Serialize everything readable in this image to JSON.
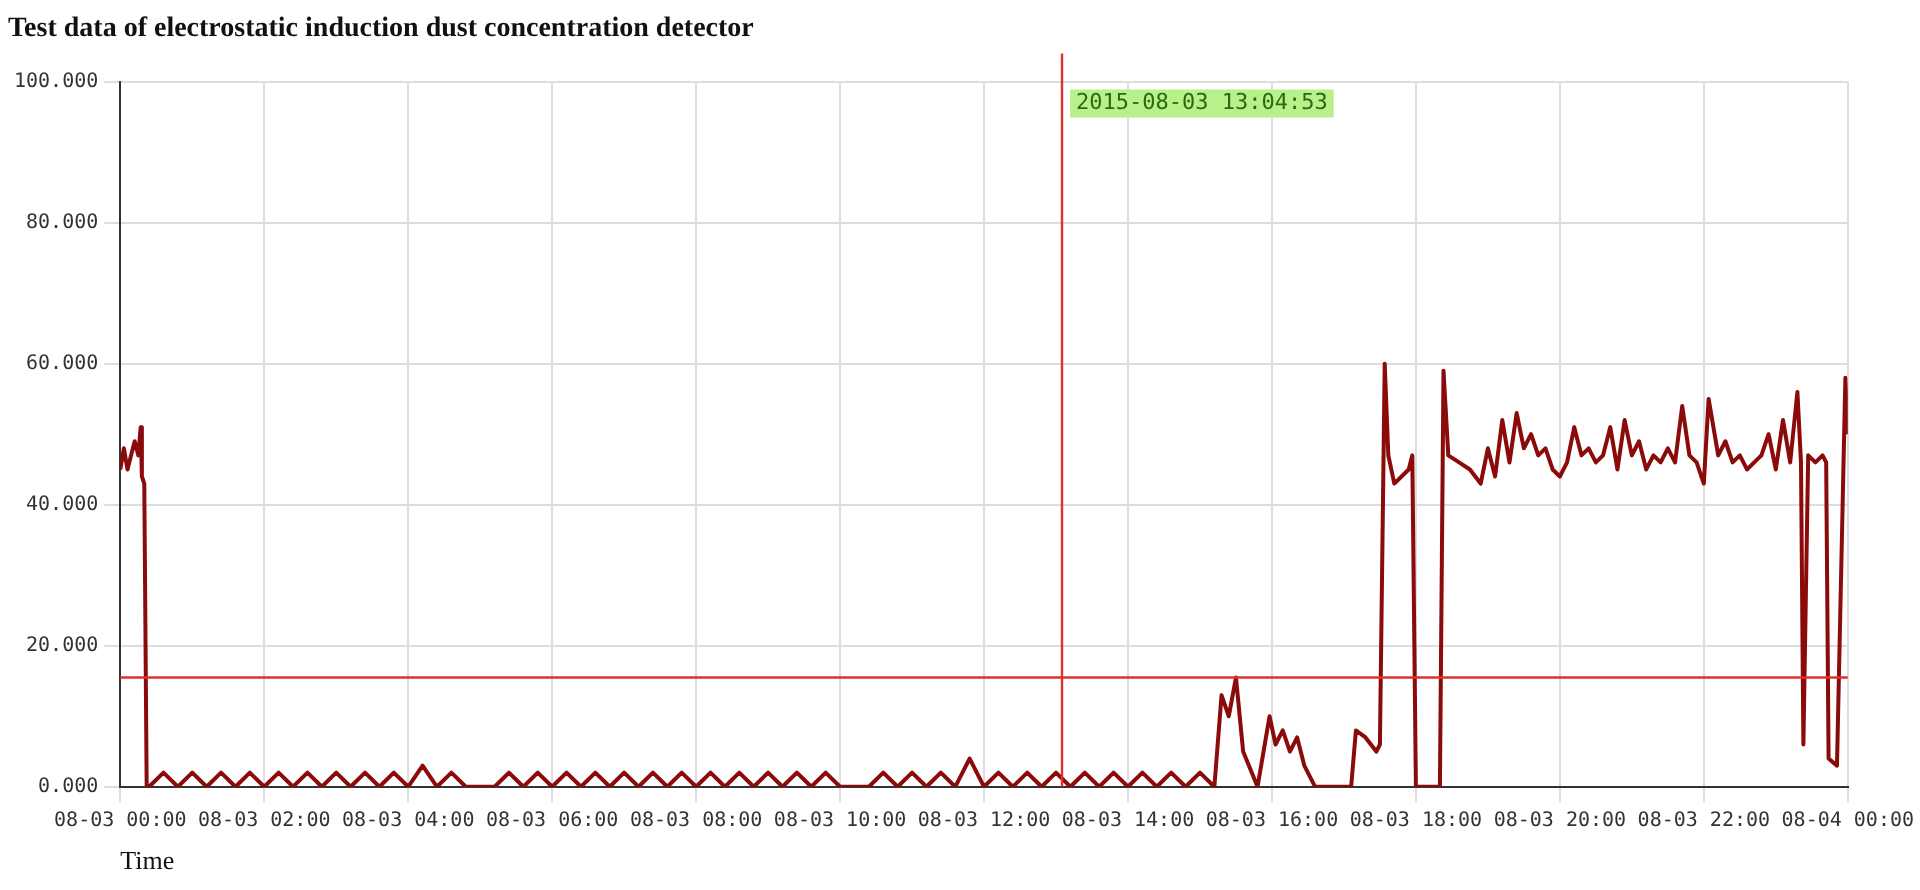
{
  "chart_data": {
    "type": "line",
    "title": "Test data of electrostatic induction dust concentration detector",
    "xlabel": "Time",
    "xlim": [
      "2015-08-03T00:00",
      "2015-08-04T00:00"
    ],
    "ylim": [
      0,
      100
    ],
    "xticks": [
      {
        "value": "2015-08-03T00:00",
        "label": "08-03 00:00"
      },
      {
        "value": "2015-08-03T02:00",
        "label": "08-03 02:00"
      },
      {
        "value": "2015-08-03T04:00",
        "label": "08-03 04:00"
      },
      {
        "value": "2015-08-03T06:00",
        "label": "08-03 06:00"
      },
      {
        "value": "2015-08-03T08:00",
        "label": "08-03 08:00"
      },
      {
        "value": "2015-08-03T10:00",
        "label": "08-03 10:00"
      },
      {
        "value": "2015-08-03T12:00",
        "label": "08-03 12:00"
      },
      {
        "value": "2015-08-03T14:00",
        "label": "08-03 14:00"
      },
      {
        "value": "2015-08-03T16:00",
        "label": "08-03 16:00"
      },
      {
        "value": "2015-08-03T18:00",
        "label": "08-03 18:00"
      },
      {
        "value": "2015-08-03T20:00",
        "label": "08-03 20:00"
      },
      {
        "value": "2015-08-03T22:00",
        "label": "08-03 22:00"
      },
      {
        "value": "2015-08-04T00:00",
        "label": "08-04 00:00"
      }
    ],
    "yticks": [
      {
        "value": 0,
        "label": "0.000"
      },
      {
        "value": 20,
        "label": "20.000"
      },
      {
        "value": 40,
        "label": "40.000"
      },
      {
        "value": 60,
        "label": "60.000"
      },
      {
        "value": 80,
        "label": "80.000"
      },
      {
        "value": 100,
        "label": "100.000"
      }
    ],
    "grid": true,
    "legend": false,
    "marker": "none",
    "line_style": "solid",
    "ref_lines": [
      {
        "axis": "x",
        "value": "2015-08-03T13:05",
        "label": "2015-08-03 13:04:53",
        "color": "#e03030"
      },
      {
        "axis": "y",
        "value": 15.5,
        "color": "#e03030"
      }
    ],
    "series": [
      {
        "color": "#8b0a0a",
        "x": [
          "2015-08-03T00:00",
          "2015-08-03T00:03",
          "2015-08-03T00:06",
          "2015-08-03T00:09",
          "2015-08-03T00:12",
          "2015-08-03T00:15",
          "2015-08-03T00:17",
          "2015-08-03T00:18",
          "2015-08-03T00:20",
          "2015-08-03T00:22",
          "2015-08-03T00:24",
          "2015-08-03T00:36",
          "2015-08-03T00:48",
          "2015-08-03T01:00",
          "2015-08-03T01:12",
          "2015-08-03T01:24",
          "2015-08-03T01:36",
          "2015-08-03T01:48",
          "2015-08-03T02:00",
          "2015-08-03T02:12",
          "2015-08-03T02:24",
          "2015-08-03T02:36",
          "2015-08-03T02:48",
          "2015-08-03T03:00",
          "2015-08-03T03:12",
          "2015-08-03T03:24",
          "2015-08-03T03:36",
          "2015-08-03T03:48",
          "2015-08-03T04:00",
          "2015-08-03T04:12",
          "2015-08-03T04:24",
          "2015-08-03T04:36",
          "2015-08-03T04:48",
          "2015-08-03T05:00",
          "2015-08-03T05:12",
          "2015-08-03T05:24",
          "2015-08-03T05:36",
          "2015-08-03T05:48",
          "2015-08-03T06:00",
          "2015-08-03T06:12",
          "2015-08-03T06:24",
          "2015-08-03T06:36",
          "2015-08-03T06:48",
          "2015-08-03T07:00",
          "2015-08-03T07:12",
          "2015-08-03T07:24",
          "2015-08-03T07:36",
          "2015-08-03T07:48",
          "2015-08-03T08:00",
          "2015-08-03T08:12",
          "2015-08-03T08:24",
          "2015-08-03T08:36",
          "2015-08-03T08:48",
          "2015-08-03T09:00",
          "2015-08-03T09:12",
          "2015-08-03T09:24",
          "2015-08-03T09:36",
          "2015-08-03T09:48",
          "2015-08-03T10:00",
          "2015-08-03T10:12",
          "2015-08-03T10:24",
          "2015-08-03T10:36",
          "2015-08-03T10:48",
          "2015-08-03T11:00",
          "2015-08-03T11:12",
          "2015-08-03T11:24",
          "2015-08-03T11:36",
          "2015-08-03T11:48",
          "2015-08-03T12:00",
          "2015-08-03T12:12",
          "2015-08-03T12:24",
          "2015-08-03T12:36",
          "2015-08-03T12:48",
          "2015-08-03T13:00",
          "2015-08-03T13:12",
          "2015-08-03T13:24",
          "2015-08-03T13:36",
          "2015-08-03T13:48",
          "2015-08-03T14:00",
          "2015-08-03T14:12",
          "2015-08-03T14:24",
          "2015-08-03T14:36",
          "2015-08-03T14:48",
          "2015-08-03T15:00",
          "2015-08-03T15:12",
          "2015-08-03T15:18",
          "2015-08-03T15:24",
          "2015-08-03T15:30",
          "2015-08-03T15:36",
          "2015-08-03T15:48",
          "2015-08-03T15:58",
          "2015-08-03T16:03",
          "2015-08-03T16:09",
          "2015-08-03T16:15",
          "2015-08-03T16:21",
          "2015-08-03T16:27",
          "2015-08-03T16:36",
          "2015-08-03T17:06",
          "2015-08-03T17:10",
          "2015-08-03T17:18",
          "2015-08-03T17:27",
          "2015-08-03T17:30",
          "2015-08-03T17:34",
          "2015-08-03T17:37",
          "2015-08-03T17:42",
          "2015-08-03T17:48",
          "2015-08-03T17:54",
          "2015-08-03T17:57",
          "2015-08-03T18:00",
          "2015-08-03T18:20",
          "2015-08-03T18:23",
          "2015-08-03T18:27",
          "2015-08-03T18:36",
          "2015-08-03T18:45",
          "2015-08-03T18:54",
          "2015-08-03T19:00",
          "2015-08-03T19:06",
          "2015-08-03T19:12",
          "2015-08-03T19:18",
          "2015-08-03T19:24",
          "2015-08-03T19:30",
          "2015-08-03T19:36",
          "2015-08-03T19:42",
          "2015-08-03T19:48",
          "2015-08-03T19:54",
          "2015-08-03T20:00",
          "2015-08-03T20:06",
          "2015-08-03T20:12",
          "2015-08-03T20:18",
          "2015-08-03T20:24",
          "2015-08-03T20:30",
          "2015-08-03T20:36",
          "2015-08-03T20:42",
          "2015-08-03T20:48",
          "2015-08-03T20:54",
          "2015-08-03T21:00",
          "2015-08-03T21:06",
          "2015-08-03T21:12",
          "2015-08-03T21:18",
          "2015-08-03T21:24",
          "2015-08-03T21:30",
          "2015-08-03T21:36",
          "2015-08-03T21:42",
          "2015-08-03T21:48",
          "2015-08-03T21:54",
          "2015-08-03T22:00",
          "2015-08-03T22:04",
          "2015-08-03T22:12",
          "2015-08-03T22:18",
          "2015-08-03T22:24",
          "2015-08-03T22:30",
          "2015-08-03T22:36",
          "2015-08-03T22:42",
          "2015-08-03T22:48",
          "2015-08-03T22:54",
          "2015-08-03T23:00",
          "2015-08-03T23:06",
          "2015-08-03T23:12",
          "2015-08-03T23:18",
          "2015-08-03T23:21",
          "2015-08-03T23:23",
          "2015-08-03T23:27",
          "2015-08-03T23:33",
          "2015-08-03T23:39",
          "2015-08-03T23:42",
          "2015-08-03T23:44",
          "2015-08-03T23:51",
          "2015-08-03T23:58",
          "2015-08-04T00:00"
        ],
        "values": [
          45,
          48,
          45,
          47,
          49,
          47,
          51,
          44,
          43,
          0,
          0,
          2,
          0,
          2,
          0,
          2,
          0,
          2,
          0,
          2,
          0,
          2,
          0,
          2,
          0,
          2,
          0,
          2,
          0,
          3,
          0,
          2,
          0,
          0,
          0,
          2,
          0,
          2,
          0,
          2,
          0,
          2,
          0,
          2,
          0,
          2,
          0,
          2,
          0,
          2,
          0,
          2,
          0,
          2,
          0,
          2,
          0,
          2,
          0,
          0,
          0,
          2,
          0,
          2,
          0,
          2,
          0,
          4,
          0,
          2,
          0,
          2,
          0,
          2,
          0,
          2,
          0,
          2,
          0,
          2,
          0,
          2,
          0,
          2,
          0,
          13,
          10,
          15.5,
          5,
          0,
          10,
          6,
          8,
          5,
          7,
          3,
          0,
          0,
          8,
          7,
          5,
          6,
          60,
          47,
          43,
          44,
          45,
          47,
          0,
          0,
          59,
          47,
          46,
          45,
          43,
          48,
          44,
          52,
          46,
          53,
          48,
          50,
          47,
          48,
          45,
          44,
          46,
          51,
          47,
          48,
          46,
          47,
          51,
          45,
          52,
          47,
          49,
          45,
          47,
          46,
          48,
          46,
          54,
          47,
          46,
          43,
          55,
          47,
          49,
          46,
          47,
          45,
          46,
          47,
          50,
          45,
          52,
          46,
          56,
          46,
          6,
          47,
          46,
          47,
          46,
          4,
          3,
          58,
          50
        ]
      }
    ]
  }
}
